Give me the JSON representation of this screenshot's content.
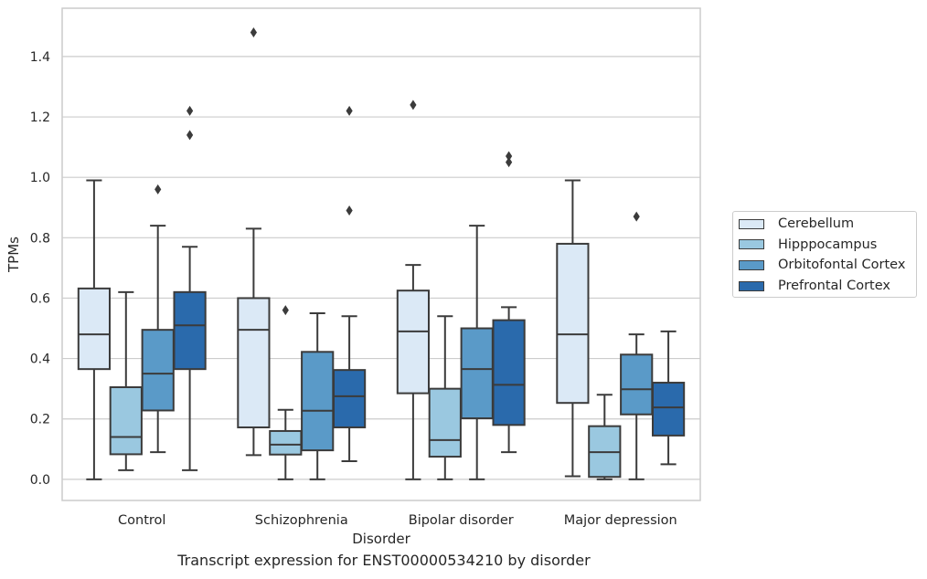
{
  "chart_data": {
    "type": "box",
    "xlabel": "Disorder",
    "ylabel": "TPMs",
    "caption": "Transcript expression for ENST00000534210 by disorder",
    "categories": [
      "Control",
      "Schizophrenia",
      "Bipolar disorder",
      "Major depression"
    ],
    "ylim": [
      -0.07,
      1.56
    ],
    "yticks": [
      "0.0",
      "0.2",
      "0.4",
      "0.6",
      "0.8",
      "1.0",
      "1.2",
      "1.4"
    ],
    "ytick_values": [
      0.0,
      0.2,
      0.4,
      0.6,
      0.8,
      1.0,
      1.2,
      1.4
    ],
    "grid": true,
    "legend_position": "right",
    "series": [
      {
        "name": "Cerebellum",
        "color": "#dbe9f6",
        "boxes": [
          {
            "whislo": 0.0,
            "q1": 0.365,
            "med": 0.48,
            "q3": 0.632,
            "whishi": 0.99,
            "fliers": []
          },
          {
            "whislo": 0.08,
            "q1": 0.172,
            "med": 0.495,
            "q3": 0.6,
            "whishi": 0.83,
            "fliers": [
              1.48
            ]
          },
          {
            "whislo": 0.0,
            "q1": 0.285,
            "med": 0.49,
            "q3": 0.625,
            "whishi": 0.71,
            "fliers": [
              1.24
            ]
          },
          {
            "whislo": 0.01,
            "q1": 0.253,
            "med": 0.48,
            "q3": 0.78,
            "whishi": 0.99,
            "fliers": []
          }
        ]
      },
      {
        "name": "Hipppocampus",
        "color": "#9ac8e0",
        "boxes": [
          {
            "whislo": 0.03,
            "q1": 0.083,
            "med": 0.14,
            "q3": 0.305,
            "whishi": 0.62,
            "fliers": []
          },
          {
            "whislo": 0.0,
            "q1": 0.082,
            "med": 0.115,
            "q3": 0.16,
            "whishi": 0.23,
            "fliers": [
              0.56
            ]
          },
          {
            "whislo": 0.0,
            "q1": 0.075,
            "med": 0.13,
            "q3": 0.3,
            "whishi": 0.54,
            "fliers": []
          },
          {
            "whislo": 0.0,
            "q1": 0.008,
            "med": 0.09,
            "q3": 0.176,
            "whishi": 0.28,
            "fliers": []
          }
        ]
      },
      {
        "name": "Orbitofontal Cortex",
        "color": "#5a9ac8",
        "boxes": [
          {
            "whislo": 0.09,
            "q1": 0.228,
            "med": 0.35,
            "q3": 0.495,
            "whishi": 0.84,
            "fliers": [
              0.96
            ]
          },
          {
            "whislo": 0.0,
            "q1": 0.096,
            "med": 0.227,
            "q3": 0.422,
            "whishi": 0.55,
            "fliers": []
          },
          {
            "whislo": 0.0,
            "q1": 0.202,
            "med": 0.365,
            "q3": 0.5,
            "whishi": 0.84,
            "fliers": []
          },
          {
            "whislo": 0.0,
            "q1": 0.215,
            "med": 0.298,
            "q3": 0.413,
            "whishi": 0.48,
            "fliers": [
              0.87
            ]
          }
        ]
      },
      {
        "name": "Prefrontal Cortex",
        "color": "#2a6aac",
        "boxes": [
          {
            "whislo": 0.03,
            "q1": 0.365,
            "med": 0.51,
            "q3": 0.62,
            "whishi": 0.77,
            "fliers": [
              1.14,
              1.22
            ]
          },
          {
            "whislo": 0.06,
            "q1": 0.172,
            "med": 0.275,
            "q3": 0.362,
            "whishi": 0.54,
            "fliers": [
              0.89,
              1.22
            ]
          },
          {
            "whislo": 0.09,
            "q1": 0.18,
            "med": 0.313,
            "q3": 0.527,
            "whishi": 0.57,
            "fliers": [
              1.05,
              1.07
            ]
          },
          {
            "whislo": 0.05,
            "q1": 0.145,
            "med": 0.238,
            "q3": 0.32,
            "whishi": 0.49,
            "fliers": []
          }
        ]
      }
    ]
  }
}
